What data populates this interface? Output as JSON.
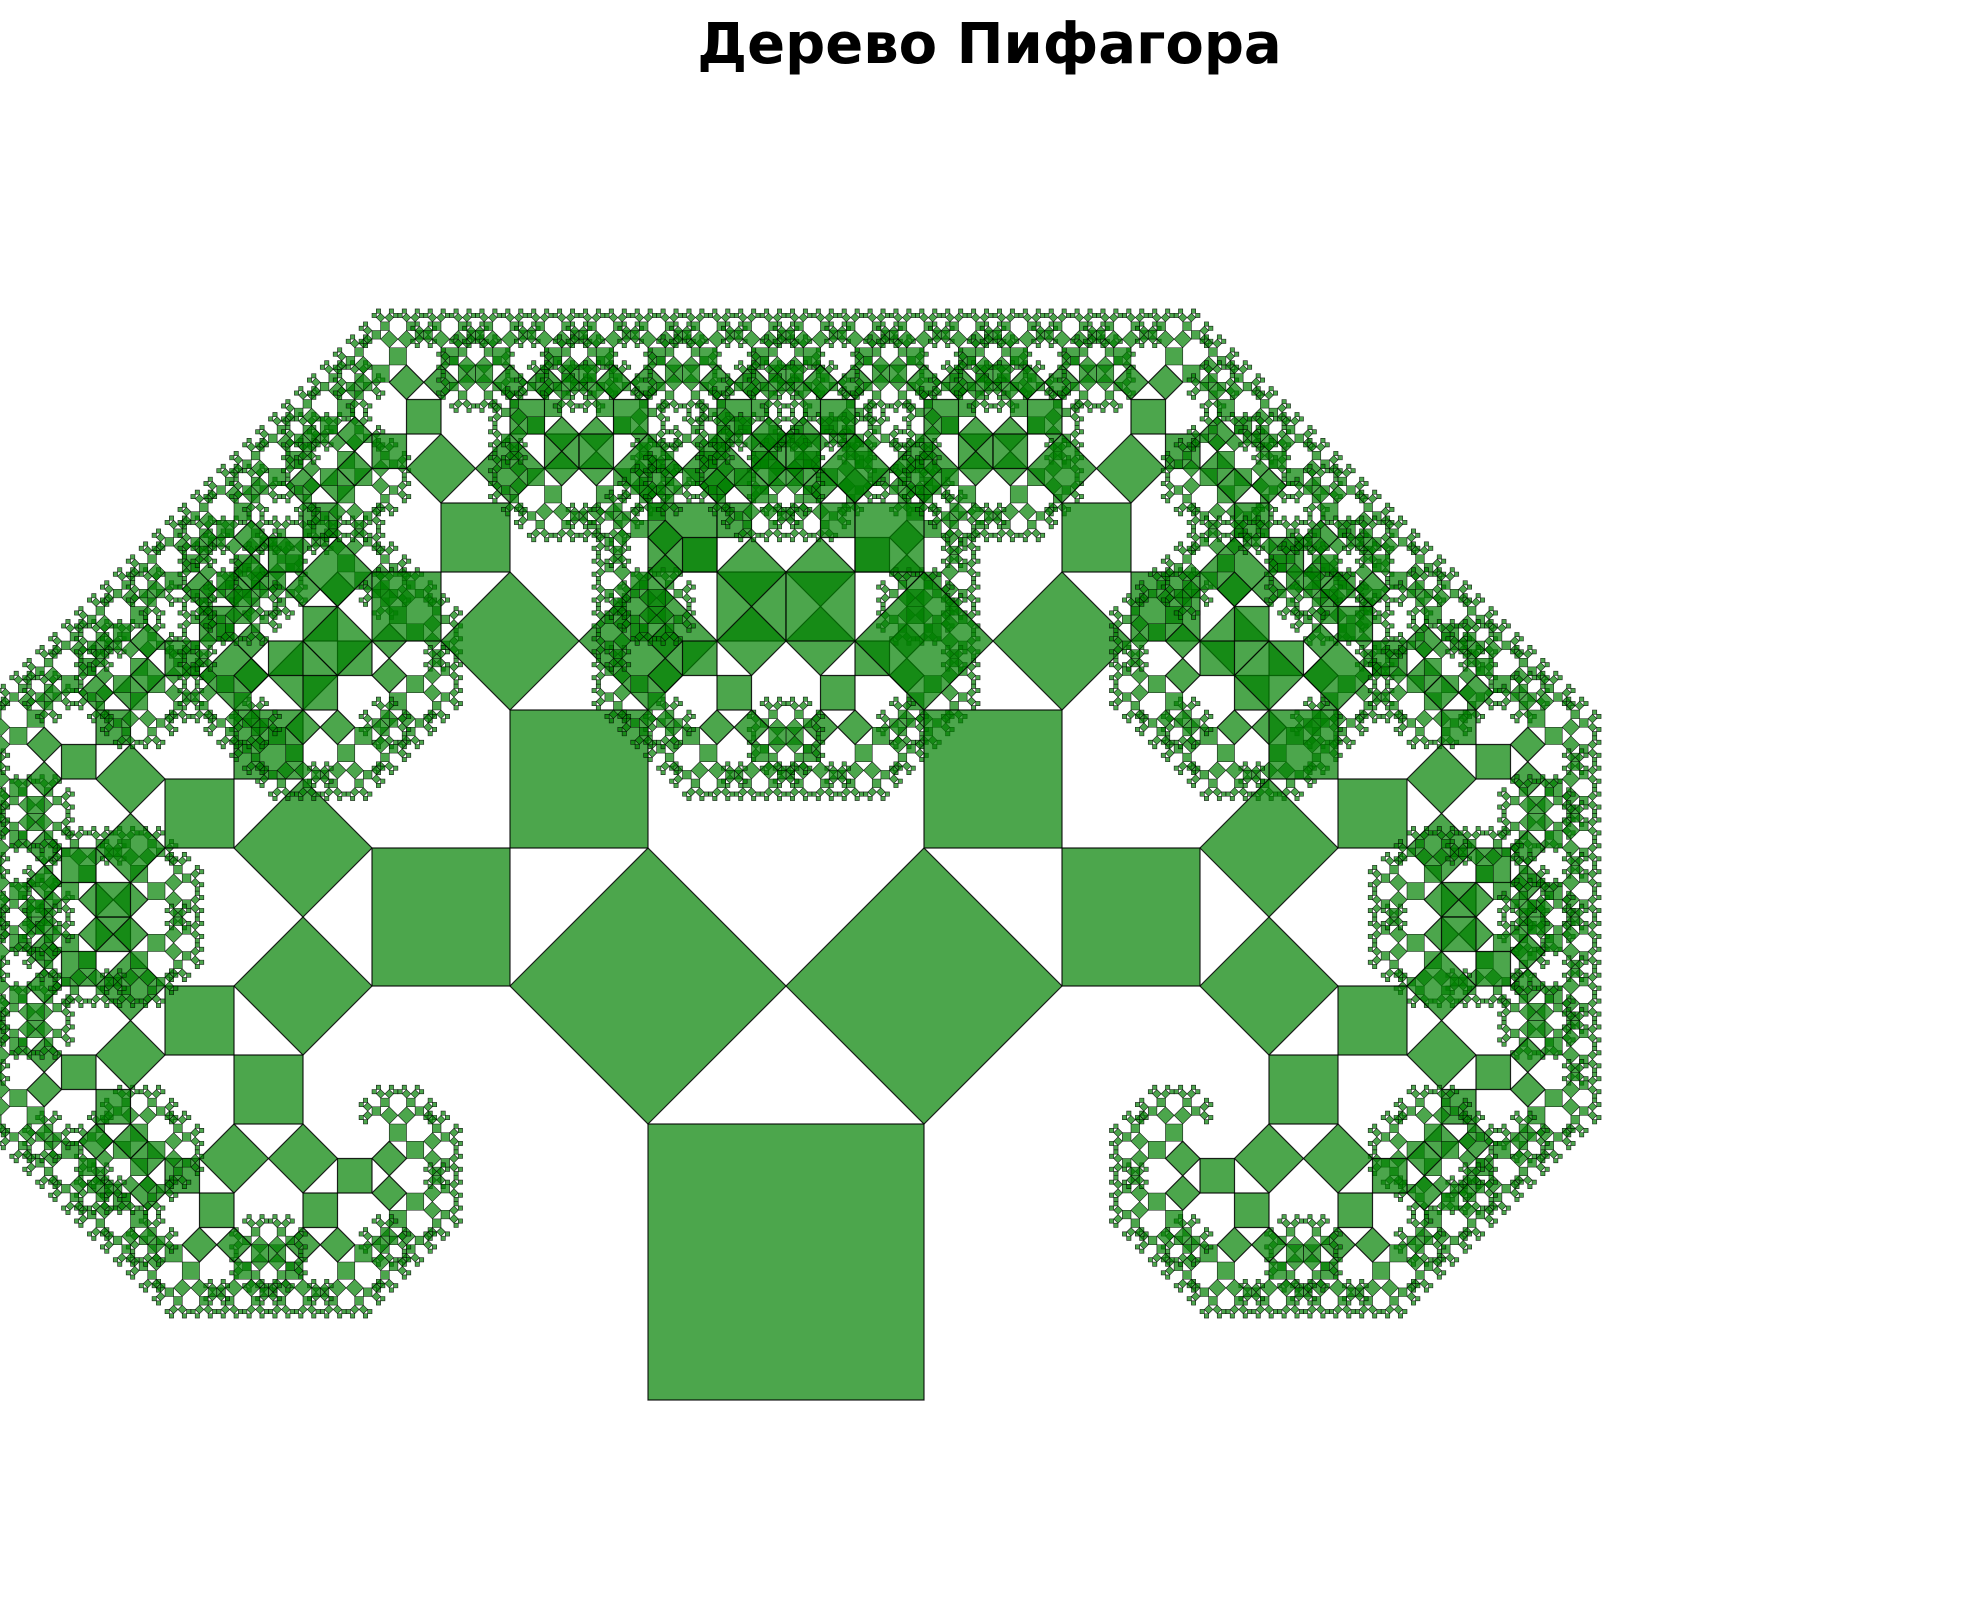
{
  "title": "Дерево Пифагора",
  "colors": {
    "background": "#ffffff",
    "square_fill": "#008000",
    "square_fill_opacity": 0.7,
    "square_stroke": "#000000",
    "title_color": "#000000"
  },
  "tree": {
    "shape": "pythagoras-tree",
    "branch_angle_deg": 45,
    "depth": 12
  }
}
